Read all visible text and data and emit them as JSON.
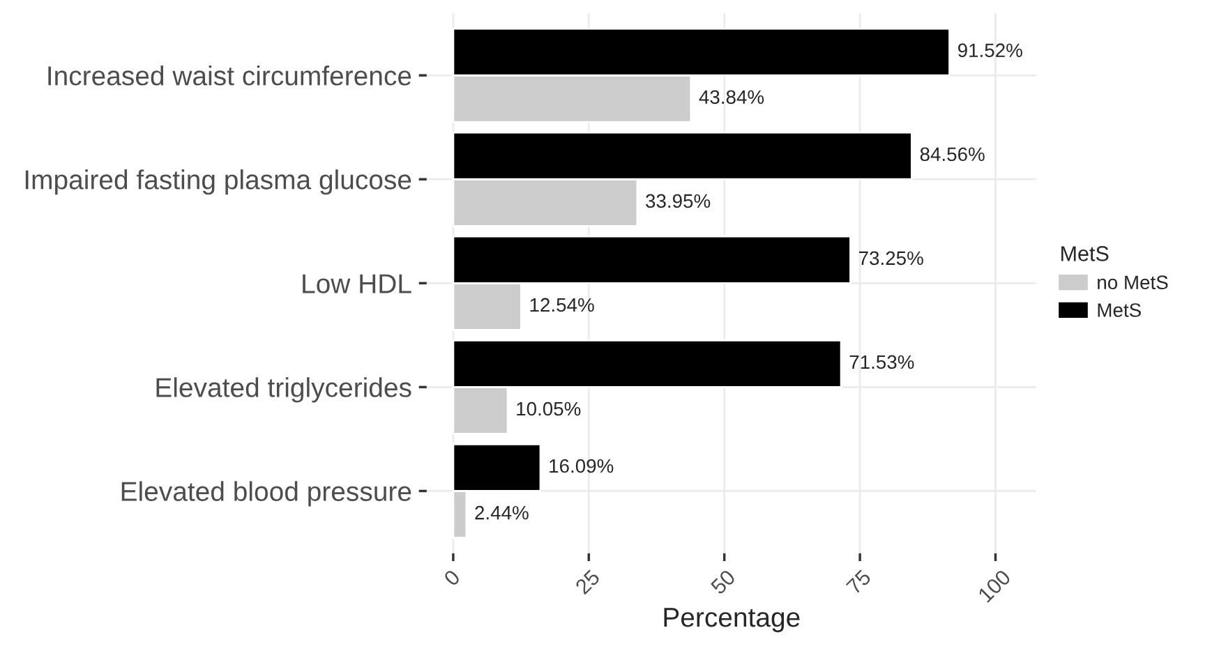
{
  "chart_data": {
    "type": "bar",
    "orientation": "horizontal",
    "xlabel": "Percentage",
    "legend_title": "MetS",
    "legend": "right",
    "grid": true,
    "categories": [
      "Increased waist circumference",
      "Impaired fasting plasma glucose",
      "Low HDL",
      "Elevated triglycerides",
      "Elevated blood pressure"
    ],
    "series": [
      {
        "name": "no MetS",
        "color": "#cccccc",
        "values": [
          43.84,
          33.95,
          12.54,
          10.05,
          2.44
        ],
        "value_labels": [
          "43.84%",
          "33.95%",
          "12.54%",
          "10.05%",
          "2.44%"
        ]
      },
      {
        "name": "MetS",
        "color": "#000000",
        "values": [
          91.52,
          84.56,
          73.25,
          71.53,
          16.09
        ],
        "value_labels": [
          "91.52%",
          "84.56%",
          "73.25%",
          "71.53%",
          "16.09%"
        ]
      }
    ],
    "xlim": [
      -4.9,
      107.5
    ],
    "xticks": [
      0,
      25,
      50,
      75,
      100
    ]
  }
}
